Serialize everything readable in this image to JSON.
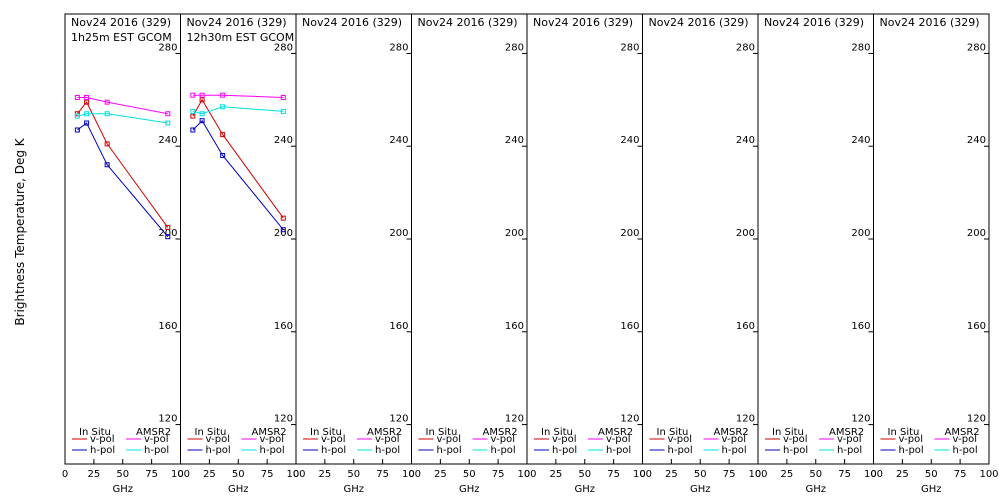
{
  "figure": {
    "ylabel": "Brightness Temperature, Deg K",
    "xlabel": "GHz",
    "yticks": [
      120,
      160,
      200,
      240,
      280
    ],
    "xticks": [
      0,
      25,
      50,
      75,
      100
    ],
    "ylim": [
      103,
      297
    ],
    "xlim": [
      0,
      100
    ],
    "legend": {
      "insitu_label": "In Situ",
      "amsr2_label": "AMSR2",
      "vpol": "v-pol",
      "hpol": "h-pol"
    },
    "colors": {
      "insitu_v": "#d00000",
      "insitu_h": "#0000c0",
      "amsr2_v": "#ff00ff",
      "amsr2_h": "#00e0e0",
      "axis": "#000000"
    }
  },
  "chart_data": [
    {
      "type": "line",
      "title": "Nov24 2016 (329)",
      "subtitle": "1h25m EST GCOM",
      "series": [
        {
          "key": "insitu_v",
          "x": [
            10.7,
            18.7,
            36.5,
            89
          ],
          "y": [
            254,
            259,
            241,
            205
          ]
        },
        {
          "key": "insitu_h",
          "x": [
            10.7,
            18.7,
            36.5,
            89
          ],
          "y": [
            247,
            250,
            232,
            201
          ]
        },
        {
          "key": "amsr2_v",
          "x": [
            10.7,
            18.7,
            36.5,
            89
          ],
          "y": [
            261,
            261,
            259,
            254
          ]
        },
        {
          "key": "amsr2_h",
          "x": [
            10.7,
            18.7,
            36.5,
            89
          ],
          "y": [
            253,
            254,
            254,
            250
          ]
        }
      ]
    },
    {
      "type": "line",
      "title": "Nov24 2016 (329)",
      "subtitle": "12h30m EST GCOM",
      "series": [
        {
          "key": "insitu_v",
          "x": [
            10.7,
            18.7,
            36.5,
            89
          ],
          "y": [
            253,
            260,
            245,
            209
          ]
        },
        {
          "key": "insitu_h",
          "x": [
            10.7,
            18.7,
            36.5,
            89
          ],
          "y": [
            247,
            251,
            236,
            204
          ]
        },
        {
          "key": "amsr2_v",
          "x": [
            10.7,
            18.7,
            36.5,
            89
          ],
          "y": [
            262,
            262,
            262,
            261
          ]
        },
        {
          "key": "amsr2_h",
          "x": [
            10.7,
            18.7,
            36.5,
            89
          ],
          "y": [
            255,
            254,
            257,
            255
          ]
        }
      ]
    },
    {
      "type": "line",
      "title": "Nov24 2016 (329)",
      "subtitle": "",
      "series": []
    },
    {
      "type": "line",
      "title": "Nov24 2016 (329)",
      "subtitle": "",
      "series": []
    },
    {
      "type": "line",
      "title": "Nov24 2016 (329)",
      "subtitle": "",
      "series": []
    },
    {
      "type": "line",
      "title": "Nov24 2016 (329)",
      "subtitle": "",
      "series": []
    },
    {
      "type": "line",
      "title": "Nov24 2016 (329)",
      "subtitle": "",
      "series": []
    },
    {
      "type": "line",
      "title": "Nov24 2016 (329)",
      "subtitle": "",
      "series": []
    }
  ]
}
